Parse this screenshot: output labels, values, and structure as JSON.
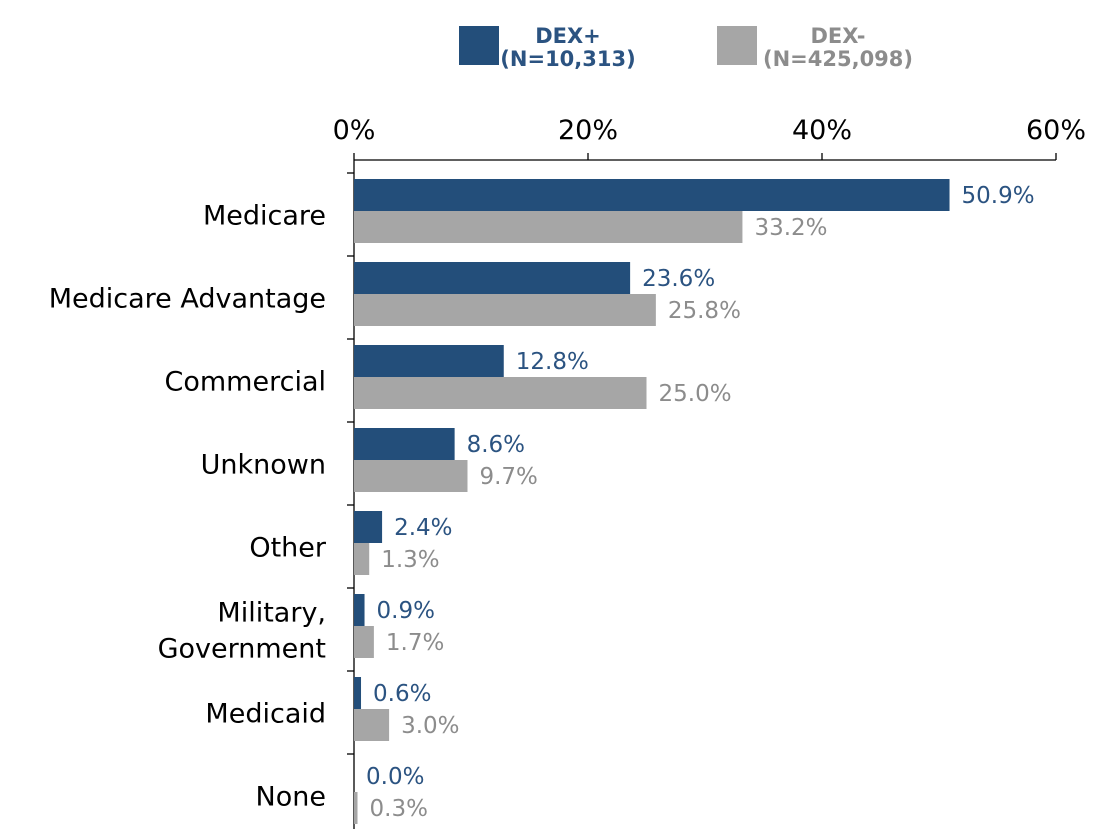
{
  "chart_data": {
    "type": "bar",
    "orientation": "horizontal",
    "categories": [
      [
        "Medicare"
      ],
      [
        "Medicare Advantage"
      ],
      [
        "Commercial"
      ],
      [
        "Unknown"
      ],
      [
        "Other"
      ],
      [
        "Military,",
        "Government"
      ],
      [
        "Medicaid"
      ],
      [
        "None"
      ]
    ],
    "series": [
      {
        "name": [
          "DEX+",
          "(N=10,313)"
        ],
        "color": "#234e7a",
        "label_color": "#2b5381",
        "values": [
          50.9,
          23.6,
          12.8,
          8.6,
          2.4,
          0.9,
          0.6,
          0.0
        ],
        "labels": [
          "50.9%",
          "23.6%",
          "12.8%",
          "8.6%",
          "2.4%",
          "0.9%",
          "0.6%",
          "0.0%"
        ]
      },
      {
        "name": [
          "DEX-",
          "(N=425,098)"
        ],
        "color": "#a6a6a6",
        "label_color": "#8c8c8c",
        "values": [
          33.2,
          25.8,
          25.0,
          9.7,
          1.3,
          1.7,
          3.0,
          0.3
        ],
        "labels": [
          "33.2%",
          "25.8%",
          "25.0%",
          "9.7%",
          "1.3%",
          "1.7%",
          "3.0%",
          "0.3%"
        ]
      }
    ],
    "xlim": [
      0,
      60
    ],
    "xticks": [
      0,
      20,
      40,
      60
    ],
    "xtick_labels": [
      "0%",
      "20%",
      "40%",
      "60%"
    ],
    "axis_position": "top",
    "legend_position": "top-center",
    "grid": false
  }
}
